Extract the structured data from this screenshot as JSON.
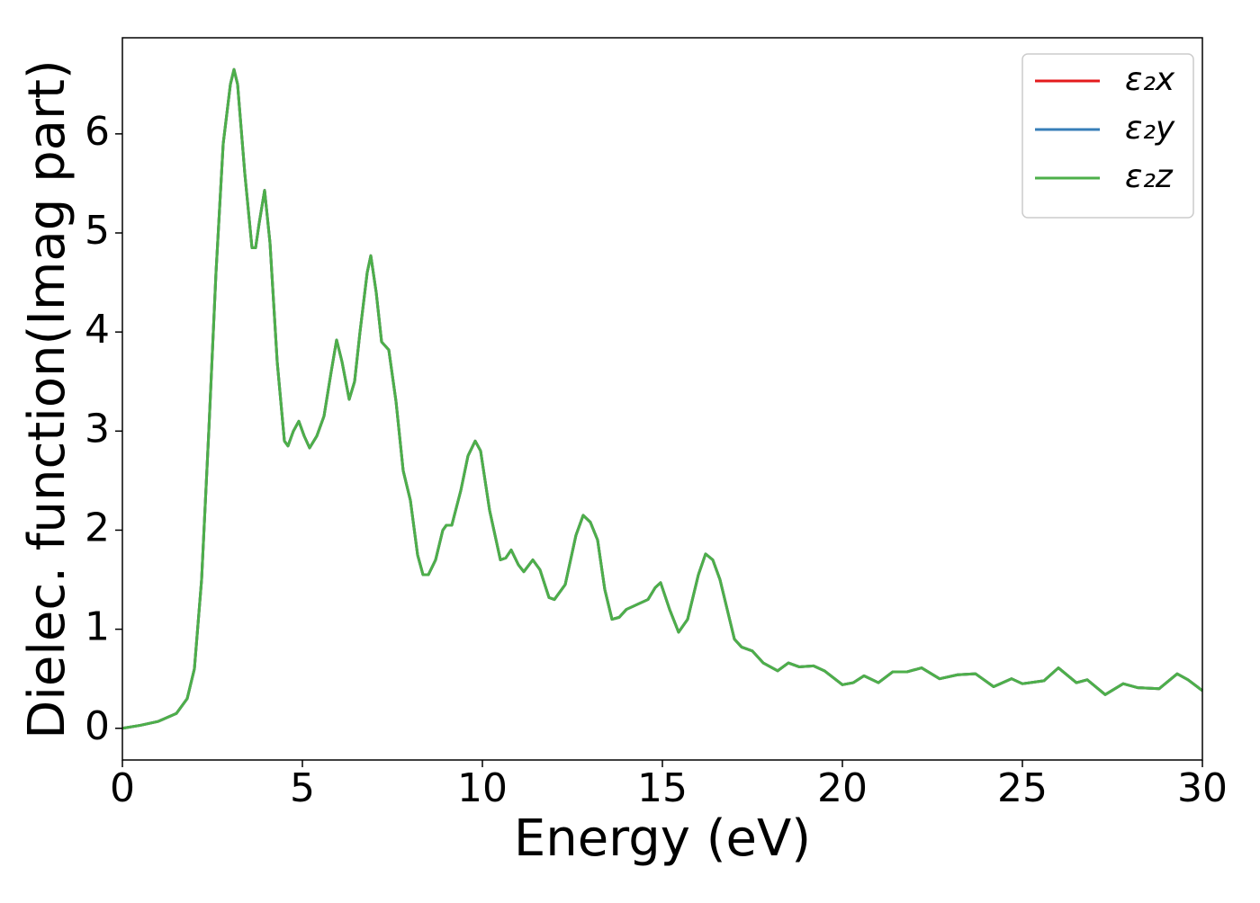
{
  "chart_data": {
    "type": "line",
    "x_label": "Energy (eV)",
    "y_label": "Dielec. function(Imag part)",
    "x": [
      0,
      0.5,
      1.0,
      1.5,
      1.8,
      2.0,
      2.2,
      2.4,
      2.6,
      2.8,
      3.0,
      3.1,
      3.2,
      3.4,
      3.6,
      3.7,
      3.8,
      3.95,
      4.1,
      4.3,
      4.5,
      4.6,
      4.75,
      4.9,
      5.05,
      5.2,
      5.4,
      5.6,
      5.8,
      5.95,
      6.1,
      6.3,
      6.45,
      6.6,
      6.8,
      6.9,
      7.05,
      7.2,
      7.4,
      7.6,
      7.8,
      8.0,
      8.2,
      8.35,
      8.5,
      8.7,
      8.9,
      9.0,
      9.15,
      9.4,
      9.6,
      9.8,
      9.95,
      10.2,
      10.5,
      10.65,
      10.8,
      11.0,
      11.15,
      11.4,
      11.6,
      11.85,
      12.0,
      12.3,
      12.6,
      12.8,
      13.0,
      13.2,
      13.4,
      13.6,
      13.8,
      14.0,
      14.3,
      14.6,
      14.8,
      14.95,
      15.2,
      15.45,
      15.7,
      16.0,
      16.2,
      16.4,
      16.6,
      16.8,
      17.0,
      17.2,
      17.5,
      17.8,
      18.2,
      18.5,
      18.8,
      19.2,
      19.5,
      20.0,
      20.3,
      20.6,
      21.0,
      21.4,
      21.8,
      22.2,
      22.7,
      23.2,
      23.7,
      24.2,
      24.7,
      25.0,
      25.6,
      26.0,
      26.5,
      26.8,
      27.3,
      27.8,
      28.2,
      28.8,
      29.3,
      29.6,
      30.0
    ],
    "series": [
      {
        "name": "ε₂x",
        "color": "#e41a1c",
        "values": [
          0.0,
          0.03,
          0.07,
          0.15,
          0.3,
          0.6,
          1.5,
          3.0,
          4.6,
          5.9,
          6.5,
          6.65,
          6.5,
          5.6,
          4.85,
          4.85,
          5.1,
          5.43,
          4.9,
          3.7,
          2.9,
          2.85,
          3.0,
          3.1,
          2.95,
          2.83,
          2.95,
          3.15,
          3.6,
          3.92,
          3.7,
          3.32,
          3.5,
          4.0,
          4.6,
          4.77,
          4.4,
          3.9,
          3.82,
          3.3,
          2.6,
          2.3,
          1.75,
          1.55,
          1.55,
          1.7,
          2.0,
          2.05,
          2.05,
          2.4,
          2.75,
          2.9,
          2.8,
          2.2,
          1.7,
          1.72,
          1.8,
          1.65,
          1.58,
          1.7,
          1.6,
          1.32,
          1.3,
          1.45,
          1.95,
          2.15,
          2.08,
          1.9,
          1.4,
          1.1,
          1.12,
          1.2,
          1.25,
          1.3,
          1.42,
          1.47,
          1.2,
          0.97,
          1.1,
          1.55,
          1.76,
          1.7,
          1.5,
          1.2,
          0.9,
          0.82,
          0.78,
          0.66,
          0.58,
          0.66,
          0.62,
          0.63,
          0.58,
          0.44,
          0.46,
          0.53,
          0.46,
          0.57,
          0.57,
          0.61,
          0.5,
          0.54,
          0.55,
          0.42,
          0.5,
          0.45,
          0.48,
          0.61,
          0.46,
          0.49,
          0.34,
          0.45,
          0.41,
          0.4,
          0.55,
          0.49,
          0.38
        ]
      },
      {
        "name": "ε₂y",
        "color": "#377eb8",
        "values": [
          0.0,
          0.03,
          0.07,
          0.15,
          0.3,
          0.6,
          1.5,
          3.0,
          4.6,
          5.9,
          6.5,
          6.65,
          6.5,
          5.6,
          4.85,
          4.85,
          5.1,
          5.43,
          4.9,
          3.7,
          2.9,
          2.85,
          3.0,
          3.1,
          2.95,
          2.83,
          2.95,
          3.15,
          3.6,
          3.92,
          3.7,
          3.32,
          3.5,
          4.0,
          4.6,
          4.77,
          4.4,
          3.9,
          3.82,
          3.3,
          2.6,
          2.3,
          1.75,
          1.55,
          1.55,
          1.7,
          2.0,
          2.05,
          2.05,
          2.4,
          2.75,
          2.9,
          2.8,
          2.2,
          1.7,
          1.72,
          1.8,
          1.65,
          1.58,
          1.7,
          1.6,
          1.32,
          1.3,
          1.45,
          1.95,
          2.15,
          2.08,
          1.9,
          1.4,
          1.1,
          1.12,
          1.2,
          1.25,
          1.3,
          1.42,
          1.47,
          1.2,
          0.97,
          1.1,
          1.55,
          1.76,
          1.7,
          1.5,
          1.2,
          0.9,
          0.82,
          0.78,
          0.66,
          0.58,
          0.66,
          0.62,
          0.63,
          0.58,
          0.44,
          0.46,
          0.53,
          0.46,
          0.57,
          0.57,
          0.61,
          0.5,
          0.54,
          0.55,
          0.42,
          0.5,
          0.45,
          0.48,
          0.61,
          0.46,
          0.49,
          0.34,
          0.45,
          0.41,
          0.4,
          0.55,
          0.49,
          0.38
        ]
      },
      {
        "name": "ε₂z",
        "color": "#4daf4a",
        "values": [
          0.0,
          0.03,
          0.07,
          0.15,
          0.3,
          0.6,
          1.5,
          3.0,
          4.6,
          5.9,
          6.5,
          6.65,
          6.5,
          5.6,
          4.85,
          4.85,
          5.1,
          5.43,
          4.9,
          3.7,
          2.9,
          2.85,
          3.0,
          3.1,
          2.95,
          2.83,
          2.95,
          3.15,
          3.6,
          3.92,
          3.7,
          3.32,
          3.5,
          4.0,
          4.6,
          4.77,
          4.4,
          3.9,
          3.82,
          3.3,
          2.6,
          2.3,
          1.75,
          1.55,
          1.55,
          1.7,
          2.0,
          2.05,
          2.05,
          2.4,
          2.75,
          2.9,
          2.8,
          2.2,
          1.7,
          1.72,
          1.8,
          1.65,
          1.58,
          1.7,
          1.6,
          1.32,
          1.3,
          1.45,
          1.95,
          2.15,
          2.08,
          1.9,
          1.4,
          1.1,
          1.12,
          1.2,
          1.25,
          1.3,
          1.42,
          1.47,
          1.2,
          0.97,
          1.1,
          1.55,
          1.76,
          1.7,
          1.5,
          1.2,
          0.9,
          0.82,
          0.78,
          0.66,
          0.58,
          0.66,
          0.62,
          0.63,
          0.58,
          0.44,
          0.46,
          0.53,
          0.46,
          0.57,
          0.57,
          0.61,
          0.5,
          0.54,
          0.55,
          0.42,
          0.5,
          0.45,
          0.48,
          0.61,
          0.46,
          0.49,
          0.34,
          0.45,
          0.41,
          0.4,
          0.55,
          0.49,
          0.38
        ]
      }
    ],
    "xlim": [
      0,
      30
    ],
    "xticks": [
      0,
      5,
      10,
      15,
      20,
      25,
      30
    ],
    "ylim": [
      -0.32,
      6.97
    ],
    "yticks": [
      0,
      1,
      2,
      3,
      4,
      5,
      6
    ],
    "grid": false,
    "legend": "upper right"
  }
}
